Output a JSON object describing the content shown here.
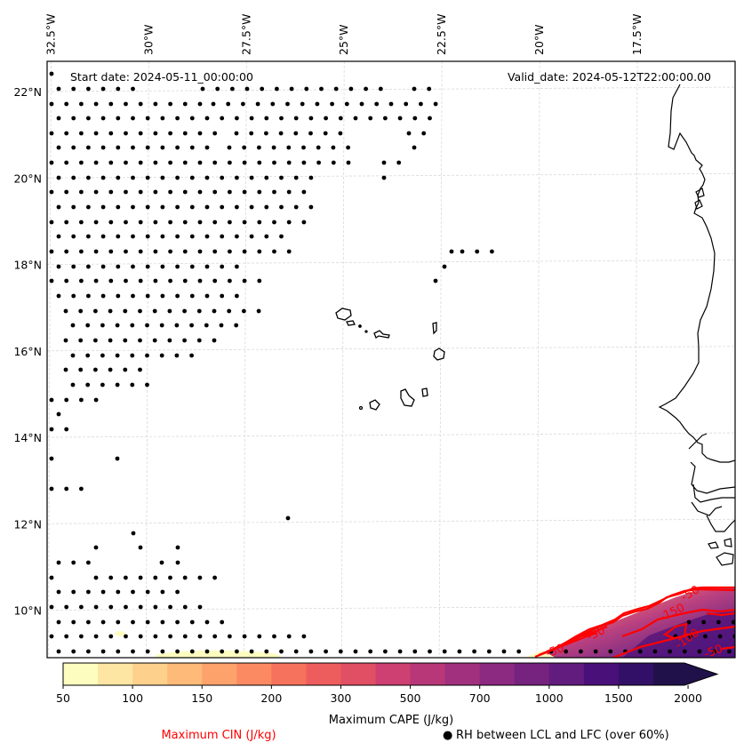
{
  "map": {
    "annotations": {
      "start_date": "Start date: 2024-05-11_00:00:00",
      "valid_date": "Valid_date: 2024-05-12T22:00:00.00"
    },
    "lon_ticks": [
      "32.5°W",
      "30°W",
      "27.5°W",
      "25°W",
      "22.5°W",
      "20°W",
      "17.5°W"
    ],
    "lat_ticks": [
      "22°N",
      "20°N",
      "18°N",
      "16°N",
      "14°N",
      "12°N",
      "10°N"
    ],
    "lon_tick_values": [
      -32.5,
      -30,
      -27.5,
      -25,
      -22.5,
      -20,
      -17.5
    ],
    "lat_tick_values": [
      22,
      20,
      18,
      16,
      14,
      12,
      10
    ],
    "extent": {
      "lon_min": -32.6,
      "lon_max": -15.0,
      "lat_min": 8.9,
      "lat_max": 22.7
    },
    "cin_contour_labels": [
      "-50",
      "-150",
      "-100",
      "-50",
      "-50",
      "-50"
    ],
    "colors": {
      "coastline": "#000000",
      "gridline": "#d9d9d9",
      "cin_contour": "#ff0000",
      "dot": "#000000"
    }
  },
  "colorbar": {
    "title": "Maximum CAPE (J/kg)",
    "tick_labels": [
      "50",
      "100",
      "150",
      "200",
      "300",
      "500",
      "700",
      "1000",
      "1500",
      "2000"
    ],
    "levels": [
      50,
      75,
      100,
      125,
      150,
      175,
      200,
      250,
      300,
      400,
      500,
      600,
      700,
      850,
      1000,
      1250,
      1500,
      1750,
      2000
    ],
    "colors": [
      "#fcfdbf",
      "#fde6a3",
      "#fdd08c",
      "#feba78",
      "#fea26b",
      "#fb8a62",
      "#f7725c",
      "#ee5d5d",
      "#e04f63",
      "#cd4071",
      "#b73779",
      "#a1307e",
      "#8c2981",
      "#76227f",
      "#611c7e",
      "#4a1079",
      "#331067",
      "#20114b"
    ],
    "extend": "max"
  },
  "legend": {
    "cin_label": "Maximum CIN (J/kg)",
    "rh_marker": "●",
    "rh_label": "RH between LCL and LFC (over 60%)"
  }
}
